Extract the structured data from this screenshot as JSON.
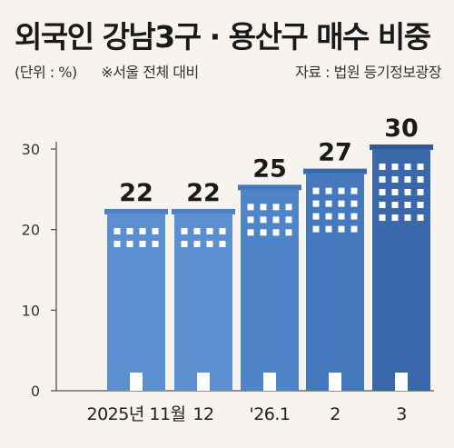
{
  "header": {
    "title": "외국인 강남3구 · 용산구 매수 비중",
    "unit_note": "(단위 : %)",
    "basis_note": "※서울 전체 대비",
    "source": "자료 : 법원 등기정보광장"
  },
  "chart_data": {
    "type": "bar",
    "categories": [
      "2025년 11월",
      "12",
      "'26.1",
      "2",
      "3"
    ],
    "values": [
      22,
      22,
      25,
      27,
      30
    ],
    "ylim": [
      0,
      30
    ],
    "yticks": [
      0,
      10,
      20,
      30
    ],
    "grid": false,
    "bar_style": "building"
  },
  "colors": {
    "background": "#f7f3ee",
    "bars": [
      "#5b8fd0",
      "#5b8fd0",
      "#4f84c8",
      "#4678be",
      "#3a68ab"
    ],
    "roof": [
      "#4d81c4",
      "#4d81c4",
      "#4376b9",
      "#3a6aae",
      "#2f5a9b"
    ],
    "window": "#ffffff",
    "axis": "#555555"
  }
}
